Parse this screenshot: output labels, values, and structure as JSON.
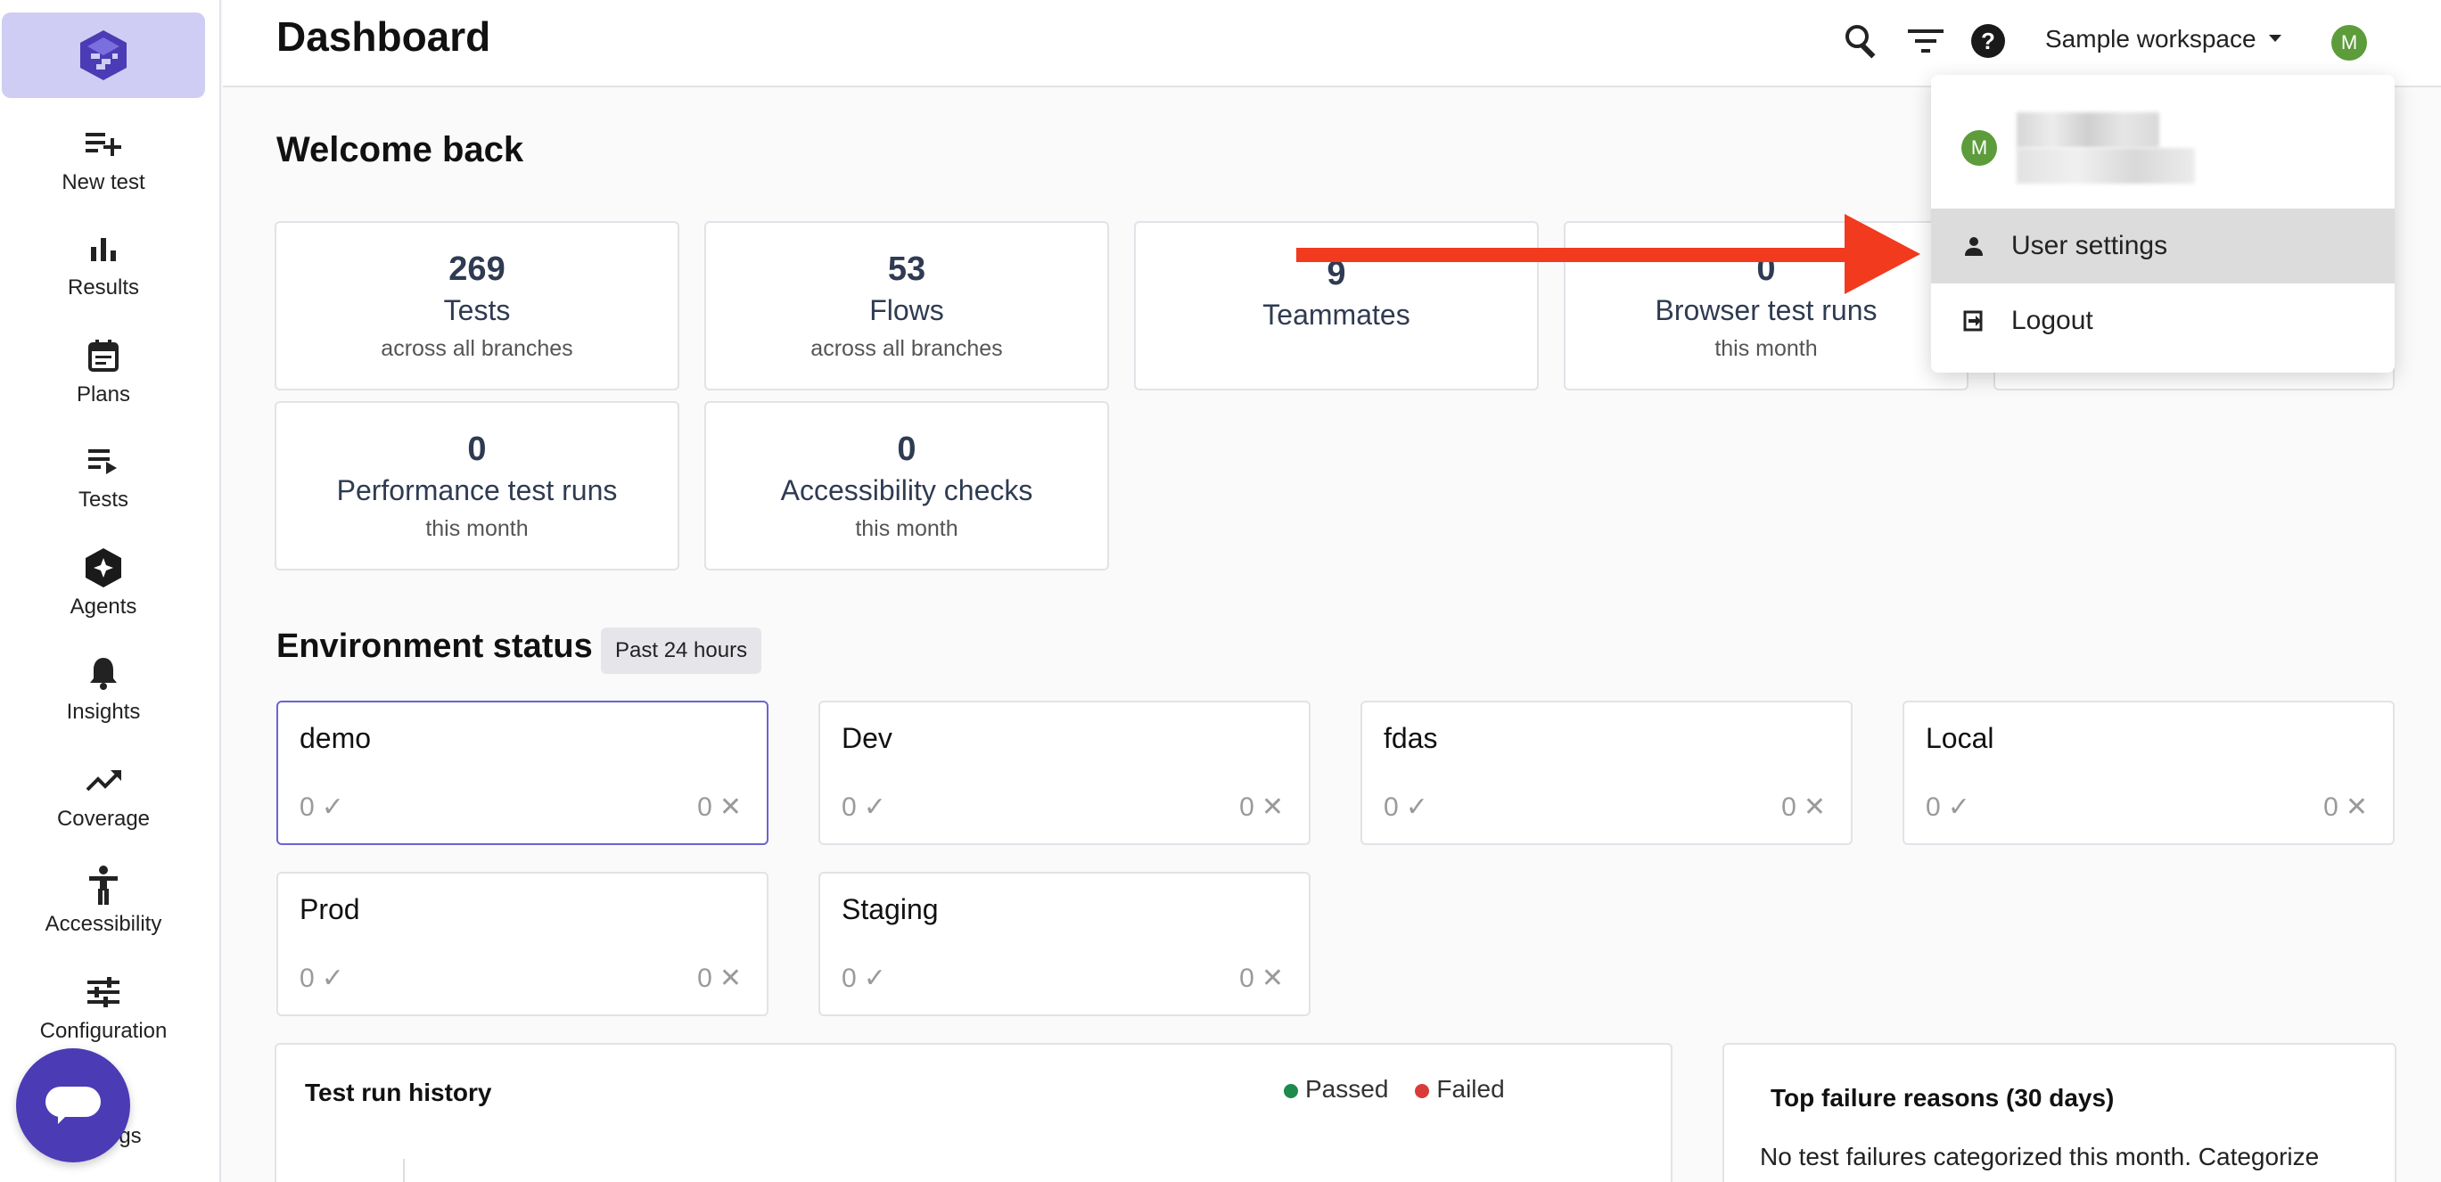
{
  "header": {
    "title": "Dashboard",
    "workspace": "Sample workspace",
    "avatar_initial": "M",
    "icons": [
      "search-icon",
      "filter-icon",
      "help-icon",
      "caret-down-icon"
    ]
  },
  "sidebar": {
    "items": [
      {
        "label": "New test",
        "icon": "playlist-add-icon"
      },
      {
        "label": "Results",
        "icon": "bar-chart-icon"
      },
      {
        "label": "Plans",
        "icon": "calendar-icon"
      },
      {
        "label": "Tests",
        "icon": "playlist-play-icon"
      },
      {
        "label": "Agents",
        "icon": "agent-hexagon-icon"
      },
      {
        "label": "Insights",
        "icon": "bell-icon"
      },
      {
        "label": "Coverage",
        "icon": "trending-up-icon"
      },
      {
        "label": "Accessibility",
        "icon": "accessibility-icon"
      },
      {
        "label": "Configuration",
        "icon": "sliders-icon"
      },
      {
        "label": "gs",
        "icon": "settings-icon"
      }
    ]
  },
  "welcome": "Welcome back",
  "stats": [
    {
      "num": "269",
      "label": "Tests",
      "sub": "across all branches"
    },
    {
      "num": "53",
      "label": "Flows",
      "sub": "across all branches"
    },
    {
      "num": "9",
      "label": "Teammates",
      "sub": ""
    },
    {
      "num": "0",
      "label": "Browser test runs",
      "sub": "this month"
    },
    {
      "num": "0",
      "label": "Performance test runs",
      "sub": "this month"
    },
    {
      "num": "0",
      "label": "Accessibility checks",
      "sub": "this month"
    }
  ],
  "environment": {
    "title": "Environment status",
    "badge": "Past 24 hours",
    "envs": [
      {
        "name": "demo",
        "passed": "0",
        "failed": "0"
      },
      {
        "name": "Dev",
        "passed": "0",
        "failed": "0"
      },
      {
        "name": "fdas",
        "passed": "0",
        "failed": "0"
      },
      {
        "name": "Local",
        "passed": "0",
        "failed": "0"
      },
      {
        "name": "Prod",
        "passed": "0",
        "failed": "0"
      },
      {
        "name": "Staging",
        "passed": "0",
        "failed": "0"
      }
    ]
  },
  "history": {
    "title": "Test run history",
    "legend_passed": "Passed",
    "legend_failed": "Failed",
    "passed_color": "#1e8a4c",
    "failed_color": "#d93b3b"
  },
  "failures": {
    "title": "Top failure reasons (30 days)",
    "text": "No test failures categorized this month. Categorize"
  },
  "menu": {
    "items": [
      {
        "label": "User settings",
        "icon": "person-icon"
      },
      {
        "label": "Logout",
        "icon": "logout-icon"
      }
    ]
  },
  "colors": {
    "accent": "#4b3bb5",
    "arrow": "#f23a1e",
    "avatar": "#5c9c3a"
  }
}
